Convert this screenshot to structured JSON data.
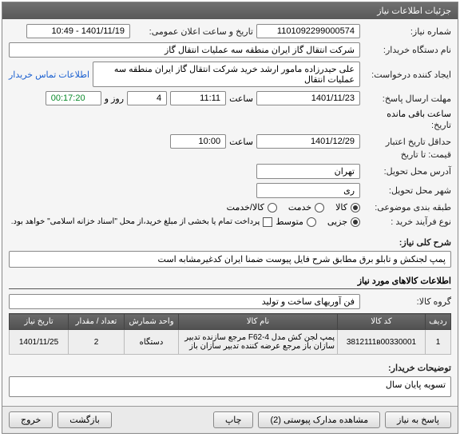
{
  "panel_title": "جزئیات اطلاعات نیاز",
  "labels": {
    "need_no": "شماره نیاز:",
    "buyer_org": "نام دستگاه خریدار:",
    "creator": "ایجاد کننده درخواست:",
    "reply_deadline": "مهلت ارسال پاسخ:",
    "last_change": "تاریخ:",
    "valid_until": "حداقل تاریخ اعتبار",
    "price_until": "قیمت: تا تاریخ",
    "delivery_addr": "آدرس محل تحویل:",
    "delivery_city": "شهر محل تحویل:",
    "category": "طبقه بندی موضوعی:",
    "buy_type": "نوع فرآیند خرید :",
    "need_title": "شرح کلی نیاز:",
    "announce_date": "تاریخ و ساعت اعلان عمومی:",
    "time_word": "ساعت",
    "day_and": "روز و",
    "remaining": "ساعت باقی مانده",
    "contact_link": "اطلاعات تماس خریدار",
    "goods_title": "اطلاعات کالاهای مورد نیاز",
    "goods_group": "گروه کالا:",
    "buyer_notes": "توضیحات خریدار:"
  },
  "values": {
    "need_no": "1101092299000574",
    "announce": "1401/11/19 - 10:49",
    "buyer_org": "شرکت انتقال گاز ایران منطقه سه عملیات انتقال گاز",
    "creator": "علی حیدرزاده مامور ارشد خرید شرکت انتقال گاز ایران منطقه سه عملیات انتقال",
    "deadline_date": "1401/11/23",
    "deadline_time": "11:11",
    "days_left": "4",
    "countdown": "00:17:20",
    "valid_date": "1401/12/29",
    "valid_time": "10:00",
    "delivery_addr": "تهران",
    "delivery_city": "ری",
    "goods_group": "فن آوریهای ساخت و تولید",
    "buyer_notes": "تسویه پایان سال"
  },
  "category_radios": [
    {
      "label": "کالا",
      "checked": true
    },
    {
      "label": "خدمت",
      "checked": false
    },
    {
      "label": "کالا/خدمت",
      "checked": false
    }
  ],
  "buy_type_radios": [
    {
      "label": "جزیی",
      "checked": true
    },
    {
      "label": "متوسط",
      "checked": false
    }
  ],
  "buy_type_note": "پرداخت تمام یا بخشی از مبلغ خرید،از محل \"اسناد خزانه اسلامی\" خواهد بود.",
  "need_title_value": "پمپ لجنکش و تابلو برق مطابق شرح فایل پیوست ضمنا ایران کدغیرمشابه است",
  "table": {
    "columns": [
      "ردیف",
      "کد کالا",
      "نام کالا",
      "واحد شمارش",
      "تعداد / مقدار",
      "تاریخ نیاز"
    ],
    "rows": [
      [
        "1",
        "3812111в00330001",
        "پمپ لجن کش مدل 4-F62 مرجع سازنده تدبیر سازان باز مرجع عرضه کننده تدبیر سازان باز",
        "دستگاه",
        "2",
        "1401/11/25"
      ]
    ],
    "col_widths": [
      "32px",
      "110px",
      "auto",
      "68px",
      "70px",
      "74px"
    ]
  },
  "footer": {
    "reply": "پاسخ به نیاز",
    "attachments": "مشاهده مدارک پیوستی (2)",
    "print": "چاپ",
    "back": "بازگشت",
    "exit": "خروج"
  },
  "colors": {
    "header_bg": "#606060",
    "link": "#1a5fd0",
    "countdown": "#0a8a2a"
  }
}
